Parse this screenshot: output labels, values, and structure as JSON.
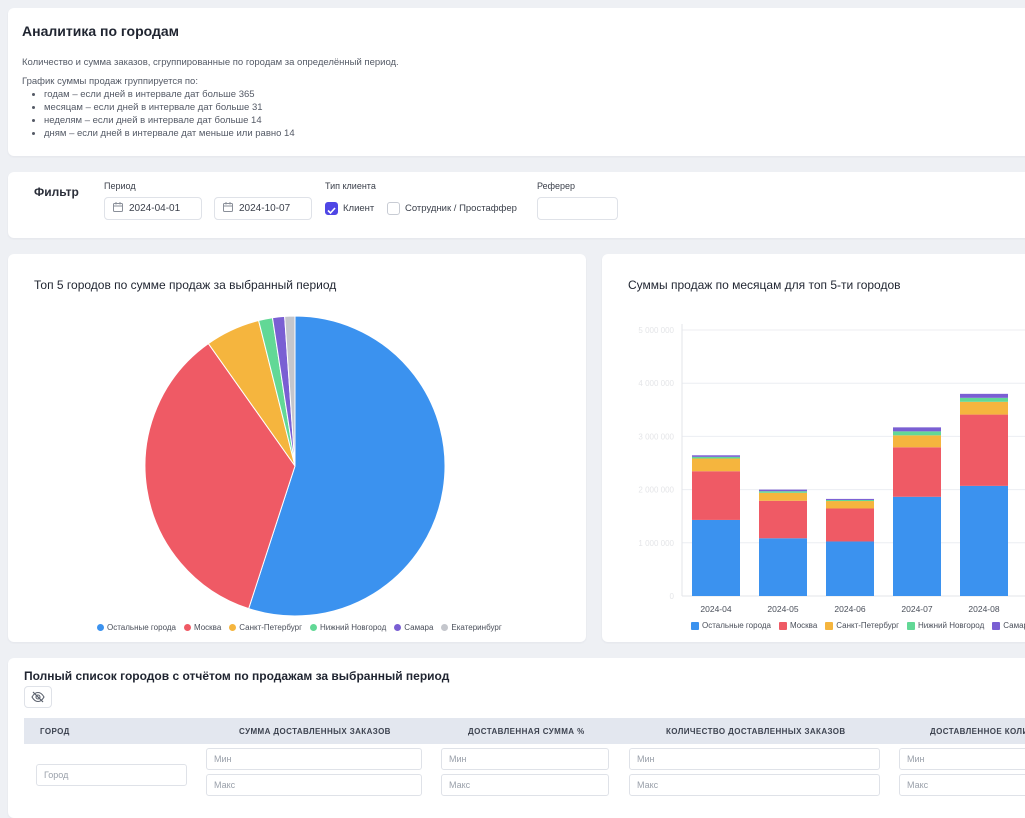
{
  "info": {
    "title": "Аналитика по городам",
    "description": "Количество и сумма заказов, сгруппированные по городам за определённый период.",
    "grouping_title": "График суммы продаж группируется по:",
    "grouping_items": [
      "годам – если дней в интервале дат больше 365",
      "месяцам – если дней в интервале дат больше 31",
      "неделям – если дней в интервале дат больше 14",
      "дням – если дней в интервале дат меньше или равно 14"
    ]
  },
  "filter": {
    "title": "Фильтр",
    "period_label": "Период",
    "date_from": "2024-04-01",
    "date_to": "2024-10-07",
    "client_type_label": "Тип клиента",
    "client_option": "Клиент",
    "client_checked": true,
    "staff_option": "Сотрудник / Простаффер",
    "staff_checked": false,
    "referrer_label": "Реферер",
    "referrer_value": ""
  },
  "colors": {
    "Остальные города": "#3b92ef",
    "Москва": "#ef5a65",
    "Санкт-Петербург": "#f5b53e",
    "Нижний Новгород": "#62d896",
    "Самара": "#7a5fd3",
    "Екатеринбург": "#c4c6cc"
  },
  "pie_chart": {
    "title": "Топ 5 городов по сумме продаж за выбранный период",
    "chart_data": {
      "type": "pie",
      "labels": [
        "Остальные города",
        "Москва",
        "Санкт-Петербург",
        "Нижний Новгород",
        "Самара",
        "Екатеринбург"
      ],
      "values": [
        55.0,
        35.2,
        5.9,
        1.5,
        1.3,
        1.1
      ]
    }
  },
  "bar_chart": {
    "title": "Суммы продаж по месяцам для топ 5-ти городов",
    "chart_data": {
      "type": "bar",
      "stacked": true,
      "categories": [
        "2024-04",
        "2024-05",
        "2024-06",
        "2024-07",
        "2024-08"
      ],
      "series": [
        {
          "name": "Остальные города",
          "values": [
            1430000,
            1085000,
            1025000,
            1865000,
            2070000
          ]
        },
        {
          "name": "Москва",
          "values": [
            915000,
            705000,
            620000,
            930000,
            1340000
          ]
        },
        {
          "name": "Санкт-Петербург",
          "values": [
            240000,
            150000,
            140000,
            225000,
            240000
          ]
        },
        {
          "name": "Нижний Новгород",
          "values": [
            30000,
            30000,
            20000,
            75000,
            75000
          ]
        },
        {
          "name": "Самара",
          "values": [
            30000,
            30000,
            20000,
            75000,
            75000
          ]
        }
      ],
      "ylim": [
        0,
        5000000
      ],
      "yticks": [
        0,
        1000000,
        2000000,
        3000000,
        4000000,
        5000000
      ],
      "grid": true
    }
  },
  "table": {
    "title": "Полный список городов с отчётом по продажам за выбранный период",
    "columns": [
      "ГОРОД",
      "СУММА ДОСТАВЛЕННЫХ ЗАКАЗОВ",
      "ДОСТАВЛЕННАЯ СУММА %",
      "КОЛИЧЕСТВО ДОСТАВЛЕННЫХ ЗАКАЗОВ",
      "ДОСТАВЛЕННОЕ КОЛИ"
    ],
    "city_placeholder": "Город",
    "min_placeholder": "Мин",
    "max_placeholder": "Макс"
  }
}
